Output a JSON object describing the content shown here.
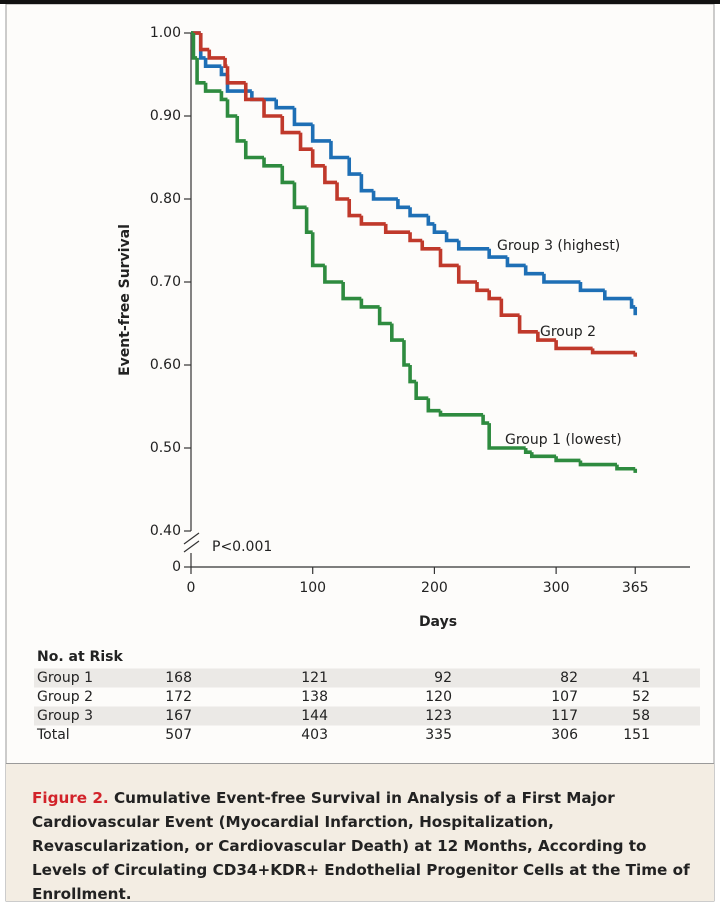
{
  "chart_data": {
    "type": "line",
    "step": "post",
    "y_label": "Event-free Survival",
    "x_label": "Days",
    "annotation": "P<0.001",
    "xlim": [
      0,
      410
    ],
    "xticks": [
      0,
      100,
      200,
      300,
      365
    ],
    "ylim": [
      0.4,
      1.0
    ],
    "axis_break": true,
    "yticks": [
      0,
      {
        "value": 0.4,
        "label": "0.40"
      },
      {
        "value": 0.5,
        "label": "0.50"
      },
      {
        "value": 0.6,
        "label": "0.60"
      },
      {
        "value": 0.7,
        "label": "0.70"
      },
      {
        "value": 0.8,
        "label": "0.80"
      },
      {
        "value": 0.9,
        "label": "0.90"
      },
      {
        "value": 1.0,
        "label": "1.00"
      }
    ],
    "series": [
      {
        "name": "Group 3 (highest)",
        "color": "#1e6fb5",
        "x": [
          0,
          8,
          12,
          25,
          30,
          50,
          70,
          85,
          100,
          115,
          130,
          140,
          150,
          170,
          180,
          195,
          200,
          210,
          220,
          245,
          260,
          275,
          290,
          320,
          340,
          362,
          365
        ],
        "values": [
          1.0,
          0.97,
          0.96,
          0.95,
          0.93,
          0.92,
          0.91,
          0.89,
          0.87,
          0.85,
          0.83,
          0.81,
          0.8,
          0.79,
          0.78,
          0.77,
          0.76,
          0.75,
          0.74,
          0.73,
          0.72,
          0.71,
          0.7,
          0.69,
          0.68,
          0.67,
          0.66
        ]
      },
      {
        "name": "Group 2",
        "color": "#c0392b",
        "x": [
          0,
          8,
          15,
          28,
          30,
          45,
          60,
          75,
          90,
          100,
          110,
          120,
          130,
          140,
          160,
          180,
          190,
          205,
          220,
          235,
          245,
          255,
          270,
          285,
          300,
          330,
          365
        ],
        "values": [
          1.0,
          0.98,
          0.97,
          0.96,
          0.94,
          0.92,
          0.9,
          0.88,
          0.86,
          0.84,
          0.82,
          0.8,
          0.78,
          0.77,
          0.76,
          0.75,
          0.74,
          0.72,
          0.7,
          0.69,
          0.68,
          0.66,
          0.64,
          0.63,
          0.62,
          0.615,
          0.61
        ]
      },
      {
        "name": "Group 1 (lowest)",
        "color": "#2e8b3f",
        "x": [
          0,
          2,
          5,
          12,
          25,
          30,
          38,
          45,
          60,
          75,
          85,
          95,
          100,
          110,
          125,
          140,
          155,
          165,
          175,
          180,
          185,
          195,
          205,
          240,
          245,
          275,
          280,
          300,
          320,
          350,
          365
        ],
        "values": [
          1.0,
          0.97,
          0.94,
          0.93,
          0.92,
          0.9,
          0.87,
          0.85,
          0.84,
          0.82,
          0.79,
          0.76,
          0.72,
          0.7,
          0.68,
          0.67,
          0.65,
          0.63,
          0.6,
          0.58,
          0.56,
          0.545,
          0.54,
          0.53,
          0.5,
          0.495,
          0.49,
          0.485,
          0.48,
          0.475,
          0.47
        ]
      }
    ]
  },
  "risk_table": {
    "title": "No. at Risk",
    "rows": [
      {
        "label": "Group 1",
        "values": [
          168,
          121,
          92,
          82,
          41
        ]
      },
      {
        "label": "Group 2",
        "values": [
          172,
          138,
          120,
          107,
          52
        ]
      },
      {
        "label": "Group 3",
        "values": [
          167,
          144,
          123,
          117,
          58
        ]
      },
      {
        "label": "Total",
        "values": [
          507,
          403,
          335,
          306,
          151
        ]
      }
    ]
  },
  "caption": {
    "label": "Figure 2.",
    "text": "Cumulative Event-free Survival in Analysis of a First Major Cardiovascular Event (Myocardial Infarction, Hospitalization, Revascularization, or Cardiovascular Death) at 12 Months, According to Levels of Circulating CD34+KDR+ Endothelial Progenitor Cells at the Time of Enrollment."
  }
}
